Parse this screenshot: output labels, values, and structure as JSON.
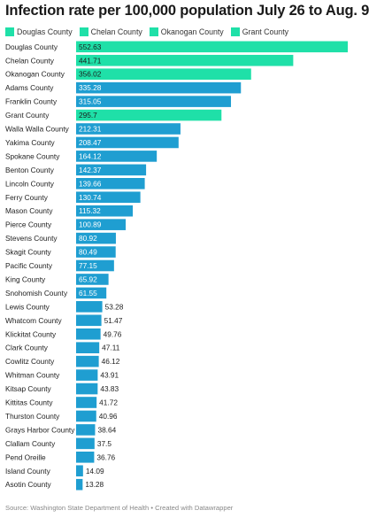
{
  "title": "Infection rate per 100,000 population July 26 to Aug. 9",
  "legend": [
    {
      "label": "Douglas County",
      "color": "#1fe0a8"
    },
    {
      "label": "Chelan County",
      "color": "#1fe0a8"
    },
    {
      "label": "Okanogan County",
      "color": "#1fe0a8"
    },
    {
      "label": "Grant County",
      "color": "#1fe0a8"
    }
  ],
  "footer": "Source: Washington State Department of Health • Created with Datawrapper",
  "colors": {
    "highlight": "#1fe0a8",
    "default": "#1f9ed1"
  },
  "chart_data": {
    "type": "bar",
    "orientation": "horizontal",
    "categories": [
      "Douglas County",
      "Chelan County",
      "Okanogan County",
      "Adams County",
      "Franklin County",
      "Grant County",
      "Walla Walla County",
      "Yakima County",
      "Spokane County",
      "Benton County",
      "Lincoln County",
      "Ferry County",
      "Mason County",
      "Pierce County",
      "Stevens County",
      "Skagit County",
      "Pacific County",
      "King County",
      "Snohomish County",
      "Lewis County",
      "Whatcom County",
      "Klickitat County",
      "Clark County",
      "Cowlitz County",
      "Whitman County",
      "Kitsap County",
      "Kittitas County",
      "Thurston County",
      "Grays Harbor County",
      "Clallam County",
      "Pend Oreille",
      "Island County",
      "Asotin County"
    ],
    "values": [
      552.63,
      441.71,
      356.02,
      335.28,
      315.05,
      295.7,
      212.31,
      208.47,
      164.12,
      142.37,
      139.66,
      130.74,
      115.32,
      100.89,
      80.92,
      80.49,
      77.15,
      65.92,
      61.55,
      53.28,
      51.47,
      49.76,
      47.11,
      46.12,
      43.91,
      43.83,
      41.72,
      40.96,
      38.64,
      37.5,
      36.76,
      14.09,
      13.28
    ],
    "labels": [
      "552.63",
      "441.71",
      "356.02",
      "335.28",
      "315.05",
      "295.7",
      "212.31",
      "208.47",
      "164.12",
      "142.37",
      "139.66",
      "130.74",
      "115.32",
      "100.89",
      "80.92",
      "80.49",
      "77.15",
      "65.92",
      "61.55",
      "53.28",
      "51.47",
      "49.76",
      "47.11",
      "46.12",
      "43.91",
      "43.83",
      "41.72",
      "40.96",
      "38.64",
      "37.5",
      "36.76",
      "14.09",
      "13.28"
    ],
    "highlighted": [
      "Douglas County",
      "Chelan County",
      "Okanogan County",
      "Grant County"
    ]
  }
}
